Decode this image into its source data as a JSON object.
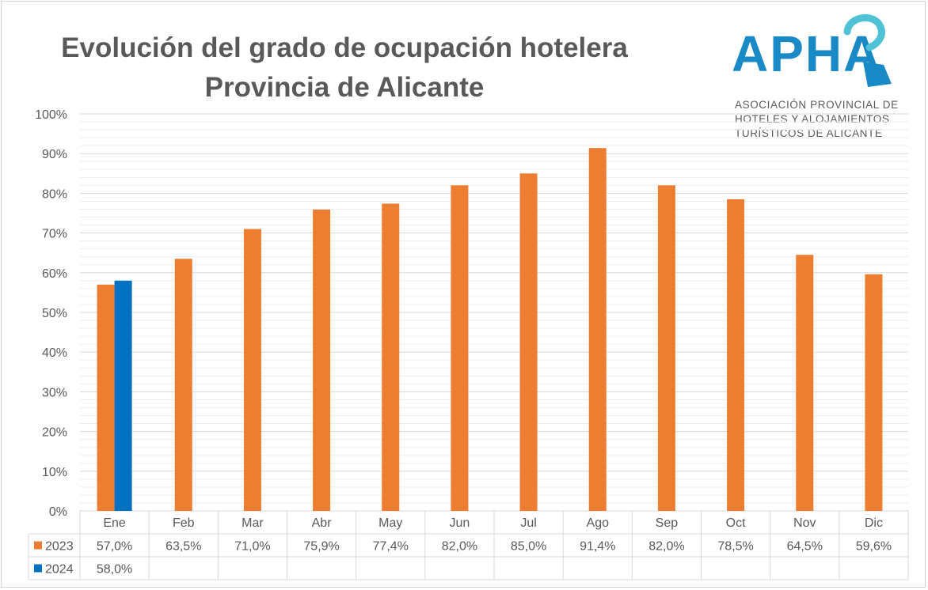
{
  "title_line1": "Evolución del grado de ocupación hotelera",
  "title_line2": "Provincia de Alicante",
  "logo": {
    "letters": "APHA",
    "line1": "ASOCIACIÓN PROVINCIAL DE",
    "line2": "HOTELES Y ALOJAMIENTOS",
    "line3": "TURÍSTICOS DE ALICANTE",
    "color_dark": "#1a8ac6",
    "color_light": "#4fc2d6"
  },
  "colors": {
    "s2023": "#ed7d31",
    "s2024": "#0070c0",
    "grid": "#d9d9d9",
    "text": "#595959"
  },
  "chart_data": {
    "type": "bar",
    "categories": [
      "Ene",
      "Feb",
      "Mar",
      "Abr",
      "May",
      "Jun",
      "Jul",
      "Ago",
      "Sep",
      "Oct",
      "Nov",
      "Dic"
    ],
    "series": [
      {
        "name": "2023",
        "values": [
          57.0,
          63.5,
          71.0,
          75.9,
          77.4,
          82.0,
          85.0,
          91.4,
          82.0,
          78.5,
          64.5,
          59.6
        ],
        "labels": [
          "57,0%",
          "63,5%",
          "71,0%",
          "75,9%",
          "77,4%",
          "82,0%",
          "85,0%",
          "91,4%",
          "82,0%",
          "78,5%",
          "64,5%",
          "59,6%"
        ]
      },
      {
        "name": "2024",
        "values": [
          58.0,
          null,
          null,
          null,
          null,
          null,
          null,
          null,
          null,
          null,
          null,
          null
        ],
        "labels": [
          "58,0%",
          "",
          "",
          "",
          "",
          "",
          "",
          "",
          "",
          "",
          "",
          ""
        ]
      }
    ],
    "yticks": [
      "0%",
      "10%",
      "20%",
      "30%",
      "40%",
      "50%",
      "60%",
      "70%",
      "80%",
      "90%",
      "100%"
    ],
    "ylim": [
      0,
      100
    ],
    "grid": true,
    "legend": "data-table"
  }
}
